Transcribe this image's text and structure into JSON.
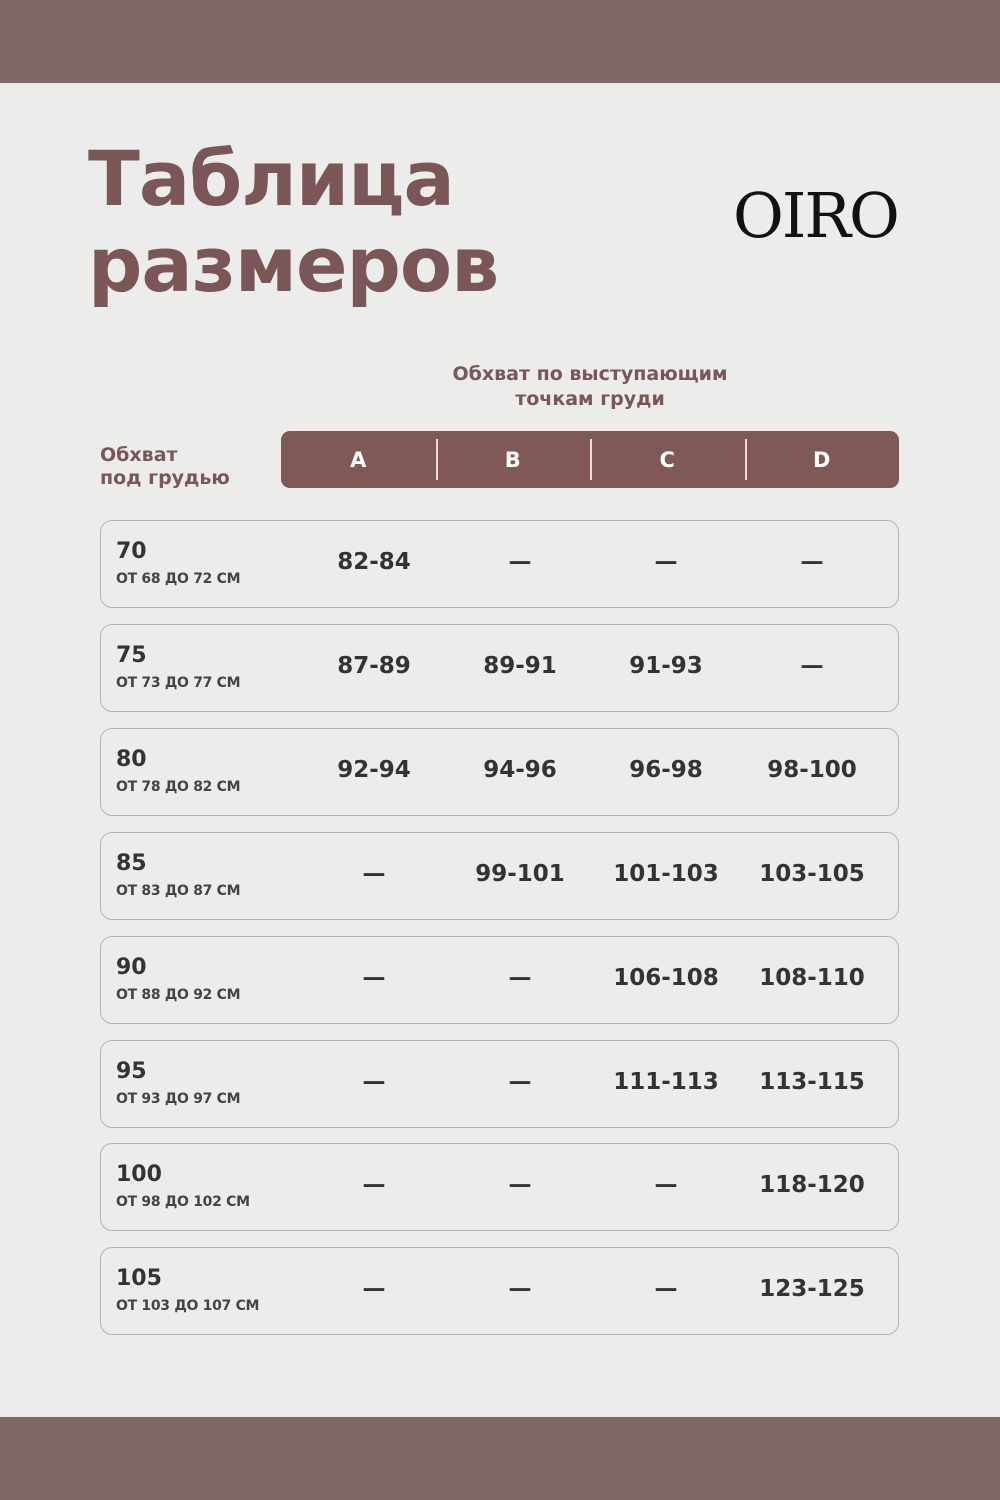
{
  "title_line1": "Таблица",
  "title_line2": "размеров",
  "logo": "OIRO",
  "bust_label_line1": "Обхват по выступающим",
  "bust_label_line2": "точкам груди",
  "underbust_label_line1": "Обхват",
  "underbust_label_line2": "под грудью",
  "cups": [
    "A",
    "B",
    "C",
    "D"
  ],
  "colors": {
    "band": "#7e6868",
    "accent": "#805856",
    "background": "#ececeb"
  },
  "rows": [
    {
      "size": "70",
      "range": "ОТ 68 ДО 72 СМ",
      "values": [
        "82-84",
        "—",
        "—",
        "—"
      ]
    },
    {
      "size": "75",
      "range": "ОТ 73 ДО 77 СМ",
      "values": [
        "87-89",
        "89-91",
        "91-93",
        "—"
      ]
    },
    {
      "size": "80",
      "range": "ОТ 78 ДО 82 СМ",
      "values": [
        "92-94",
        "94-96",
        "96-98",
        "98-100"
      ]
    },
    {
      "size": "85",
      "range": "ОТ 83 ДО 87 СМ",
      "values": [
        "—",
        "99-101",
        "101-103",
        "103-105"
      ]
    },
    {
      "size": "90",
      "range": "ОТ 88 ДО 92 СМ",
      "values": [
        "—",
        "—",
        "106-108",
        "108-110"
      ]
    },
    {
      "size": "95",
      "range": "ОТ 93 ДО 97 СМ",
      "values": [
        "—",
        "—",
        "111-113",
        "113-115"
      ]
    },
    {
      "size": "100",
      "range": "ОТ 98 ДО 102 СМ",
      "values": [
        "—",
        "—",
        "—",
        "118-120"
      ]
    },
    {
      "size": "105",
      "range": "ОТ 103 ДО 107 СМ",
      "values": [
        "—",
        "—",
        "—",
        "123-125"
      ]
    }
  ]
}
